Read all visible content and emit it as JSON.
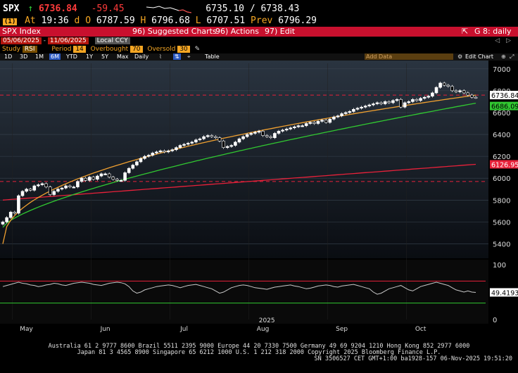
{
  "header": {
    "ticker": "SPX",
    "arrow": "↑",
    "last": "6736.84",
    "change": "-59.45",
    "bid_ask": "6735.10 / 6738.43",
    "badge": "(1)",
    "at_label": "At",
    "time": "19:36",
    "d_label": "d",
    "o_label": "O",
    "open": "6787.59",
    "h_label": "H",
    "high": "6796.68",
    "l_label": "L",
    "low": "6707.51",
    "prev_label": "Prev",
    "prev": "6796.29"
  },
  "menu": {
    "security": "SPX Index",
    "suggested": "96) Suggested Charts",
    "actions": "96) Actions",
    "edit": "97) Edit",
    "g8": "G 8: daily"
  },
  "dates": {
    "start": "05/06/2025",
    "end": "11/06/2025",
    "currency": "Local CCY"
  },
  "study": {
    "study_label": "Study",
    "study": "RSI",
    "period_label": "Period",
    "period": "14",
    "overbought_label": "Overbought",
    "overbought": "70",
    "oversold_label": "Oversold",
    "oversold": "30"
  },
  "toolbar": {
    "ranges": [
      "1D",
      "3D",
      "1M",
      "6M",
      "YTD",
      "1Y",
      "5Y",
      "Max"
    ],
    "selected_range": "6M",
    "freq": "Daily",
    "table": "Table",
    "add_data": "Add Data",
    "edit_chart": "Edit Chart"
  },
  "colors": {
    "ma_short": "#f0a030",
    "ma_mid": "#31c831",
    "ma_long": "#e8213a",
    "dash": "#e8213a",
    "rsi_line": "#c8c8c8",
    "ob_line": "#e8213a",
    "os_line": "#31c831"
  },
  "chart_data": [
    {
      "type": "candlestick",
      "title": "SPX Index",
      "ylim": [
        5300,
        7050
      ],
      "yticks": [
        5400,
        5600,
        5800,
        6000,
        6200,
        6400,
        6600,
        6800,
        7000
      ],
      "x_month_labels": [
        "May",
        "Jun",
        "Jul",
        "Aug",
        "Sep",
        "Oct"
      ],
      "x_year_label": "2025",
      "series": [
        {
          "name": "SPX",
          "kind": "close",
          "last_label": "6736.84",
          "values": [
            5600,
            5640,
            5690,
            5680,
            5840,
            5880,
            5900,
            5890,
            5930,
            5940,
            5950,
            5920,
            5850,
            5880,
            5900,
            5910,
            5930,
            5920,
            5920,
            5970,
            6000,
            5980,
            6010,
            5990,
            6020,
            6040,
            6040,
            6010,
            5990,
            5980,
            5980,
            6050,
            6090,
            6120,
            6150,
            6180,
            6200,
            6210,
            6230,
            6240,
            6250,
            6240,
            6250,
            6260,
            6280,
            6300,
            6310,
            6320,
            6330,
            6350,
            6360,
            6380,
            6390,
            6380,
            6370,
            6340,
            6280,
            6290,
            6300,
            6330,
            6360,
            6380,
            6400,
            6410,
            6420,
            6430,
            6390,
            6380,
            6370,
            6410,
            6430,
            6440,
            6450,
            6460,
            6470,
            6480,
            6480,
            6500,
            6510,
            6500,
            6520,
            6530,
            6510,
            6540,
            6560,
            6570,
            6590,
            6600,
            6610,
            6630,
            6640,
            6650,
            6660,
            6670,
            6680,
            6690,
            6680,
            6700,
            6690,
            6710,
            6720,
            6650,
            6690,
            6700,
            6720,
            6710,
            6730,
            6740,
            6750,
            6780,
            6830,
            6870,
            6850,
            6840,
            6800,
            6790,
            6800,
            6780,
            6760,
            6740,
            6736.84
          ]
        },
        {
          "name": "MA short",
          "color_key": "ma_short",
          "start": 5400,
          "end": 6760
        },
        {
          "name": "MA mid",
          "color_key": "ma_mid",
          "start": 5550,
          "end": 6686.09,
          "last_label": "6686.09"
        },
        {
          "name": "MA long",
          "color_key": "ma_long",
          "start": 5800,
          "end": 6126.95,
          "last_label": "6126.95"
        }
      ],
      "dashed_levels": [
        6760,
        5970
      ]
    },
    {
      "type": "line",
      "title": "RSI",
      "ylim": [
        0,
        100
      ],
      "yticks": [
        0,
        100
      ],
      "overbought": 70,
      "oversold": 30,
      "last_label": "49.4193",
      "values": [
        60,
        62,
        64,
        66,
        68,
        66,
        65,
        63,
        62,
        60,
        61,
        63,
        64,
        66,
        65,
        63,
        62,
        64,
        66,
        67,
        68,
        67,
        66,
        64,
        63,
        62,
        64,
        66,
        67,
        68,
        67,
        65,
        60,
        52,
        48,
        50,
        54,
        56,
        58,
        60,
        61,
        62,
        63,
        62,
        60,
        58,
        60,
        62,
        63,
        64,
        62,
        60,
        58,
        56,
        52,
        48,
        50,
        54,
        58,
        60,
        62,
        63,
        62,
        60,
        58,
        57,
        56,
        55,
        57,
        59,
        60,
        61,
        62,
        63,
        61,
        60,
        58,
        56,
        57,
        59,
        61,
        62,
        63,
        62,
        60,
        59,
        61,
        62,
        63,
        64,
        62,
        60,
        58,
        56,
        50,
        46,
        48,
        52,
        56,
        58,
        60,
        62,
        58,
        54,
        52,
        56,
        60,
        62,
        64,
        66,
        68,
        66,
        64,
        62,
        58,
        54,
        52,
        50,
        52,
        50,
        49.4193
      ]
    }
  ],
  "footer": {
    "line1": "Australia 61 2 9777 8600 Brazil 5511 2395 9000 Europe 44 20 7330 7500 Germany 49 69 9204 1210 Hong Kong 852 2977 6000",
    "line2": "Japan 81 3 4565 8900        Singapore 65 6212 1000        U.S. 1 212 318 2000           Copyright 2025 Bloomberg Finance L.P.",
    "line3": "SN 3506527 CET  GMT+1:00 ba1928-157 06-Nov-2025 19:51:20"
  }
}
